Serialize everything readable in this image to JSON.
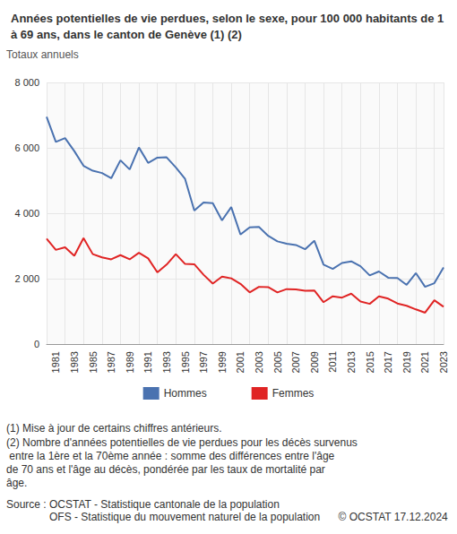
{
  "chart_data": {
    "type": "line",
    "title": "Années potentielles de vie perdues, selon le sexe, pour 100 000 habitants de 1 à 69 ans, dans le canton de Genève (1) (2)",
    "subtitle": "Totaux annuels",
    "notes": [
      "(1) Mise à jour de certains chiffres antérieurs.",
      "(2) Nombre d'années potentielles de vie perdues pour les décès survenus entre la 1ère et la 70ème année : somme des différences entre l'âge de 70 ans et l'âge au décès, pondérée par les taux de mortalité par âge."
    ],
    "source": [
      "Source : OCSTAT - Statistique cantonale de la population",
      "OFS - Statistique du mouvement naturel de la population"
    ],
    "copyright": "© OCSTAT 17.12.2024",
    "categories": [
      null,
      "1981",
      null,
      "1983",
      null,
      "1985",
      null,
      "1987",
      null,
      "1989",
      null,
      "1991",
      null,
      "1993",
      null,
      "1995",
      null,
      "1997",
      null,
      "1999",
      null,
      "2001",
      null,
      "2003",
      null,
      "2005",
      null,
      "2007",
      null,
      "2009",
      null,
      "2011",
      null,
      "2013",
      null,
      "2015",
      null,
      "2017",
      null,
      "2019",
      null,
      "2021",
      null,
      "2023"
    ],
    "series": [
      {
        "name": "Hommes",
        "color": "#4a72b0",
        "values": [
          6950,
          6180,
          6300,
          5900,
          5450,
          5300,
          5230,
          5070,
          5620,
          5340,
          6010,
          5540,
          5700,
          5710,
          5400,
          5050,
          4080,
          4330,
          4310,
          3780,
          4190,
          3350,
          3570,
          3580,
          3310,
          3140,
          3070,
          3030,
          2900,
          3160,
          2430,
          2300,
          2480,
          2530,
          2380,
          2100,
          2220,
          2030,
          2020,
          1810,
          2170,
          1750,
          1860,
          2340
        ]
      },
      {
        "name": "Femmes",
        "color": "#e02424",
        "values": [
          3220,
          2880,
          2960,
          2700,
          3240,
          2750,
          2650,
          2590,
          2720,
          2590,
          2790,
          2620,
          2190,
          2430,
          2750,
          2450,
          2440,
          2120,
          1850,
          2060,
          2010,
          1840,
          1580,
          1750,
          1740,
          1580,
          1680,
          1670,
          1630,
          1640,
          1280,
          1460,
          1420,
          1540,
          1300,
          1230,
          1460,
          1390,
          1240,
          1170,
          1060,
          960,
          1340,
          1140
        ]
      }
    ],
    "ylim": [
      0,
      8000
    ],
    "yticks": [
      0,
      {
        "value": 2000,
        "label": "2 000"
      },
      {
        "value": 4000,
        "label": "4 000"
      },
      {
        "value": 6000,
        "label": "6 000"
      },
      {
        "value": 8000,
        "label": "8 000"
      }
    ],
    "grid": true,
    "legend": "bottom"
  }
}
